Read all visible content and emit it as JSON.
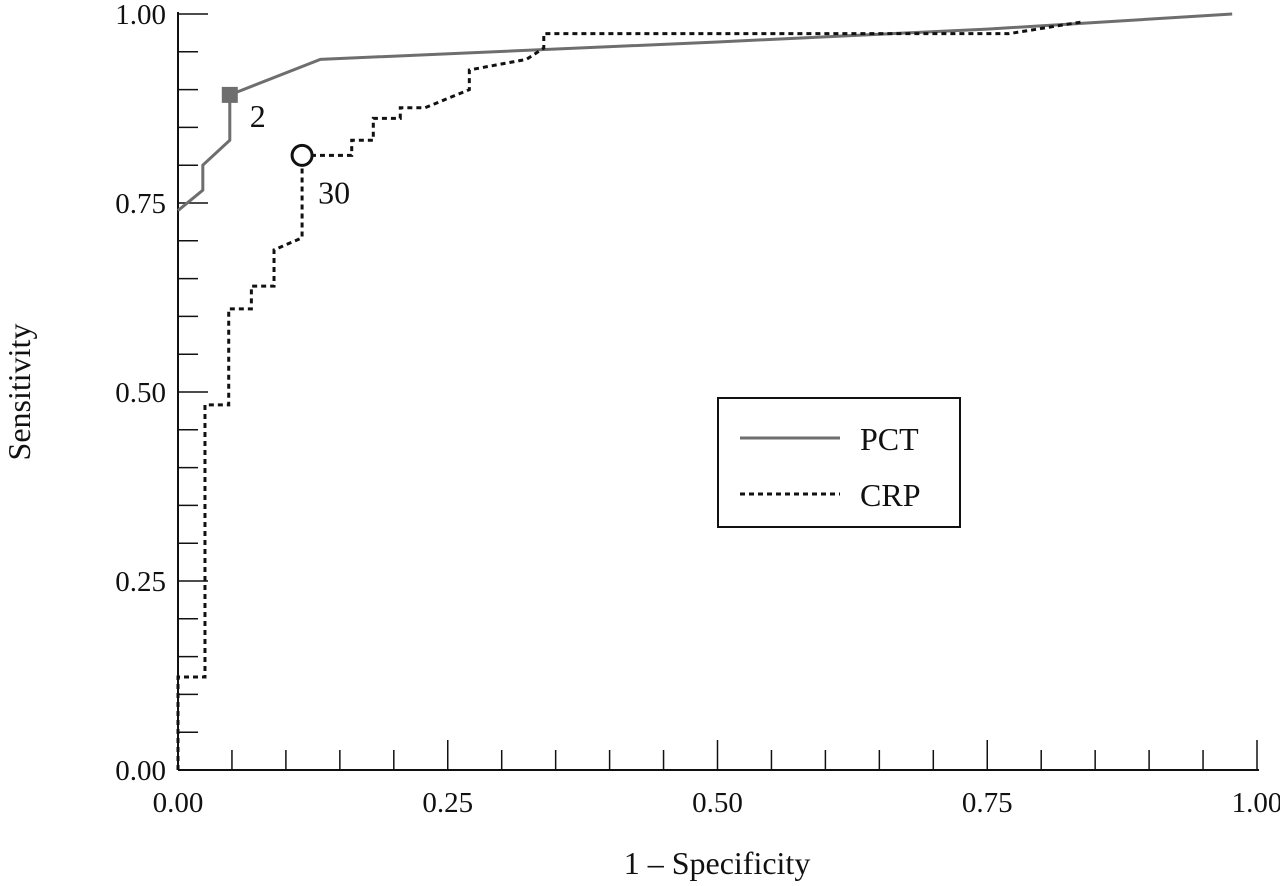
{
  "chart_data": {
    "type": "line",
    "title": "",
    "xlabel": "1 – Specificity",
    "ylabel": "Sensitivity",
    "xlim": [
      0,
      1
    ],
    "ylim": [
      0,
      1
    ],
    "xticks": [
      "0.00",
      "0.25",
      "0.50",
      "0.75",
      "1.00"
    ],
    "yticks": [
      "0.00",
      "0.25",
      "0.50",
      "0.75",
      "1.00"
    ],
    "xtick_values": [
      0,
      0.25,
      0.5,
      0.75,
      1
    ],
    "ytick_values": [
      0,
      0.25,
      0.5,
      0.75,
      1
    ],
    "minor_tick_step": 0.05,
    "grid": false,
    "legend_position": "center-right",
    "series": [
      {
        "name": "PCT",
        "style": "solid",
        "color": "#6e6e6e",
        "x": [
          0,
          0.023,
          0.023,
          0.048,
          0.048,
          0.132,
          0.5,
          0.75,
          0.977
        ],
        "y": [
          0.74,
          0.767,
          0.8,
          0.833,
          0.893,
          0.94,
          0.963,
          0.98,
          1.0
        ],
        "marker": {
          "x": 0.048,
          "y": 0.893,
          "shape": "filled-square",
          "label": "2"
        }
      },
      {
        "name": "CRP",
        "style": "dotted",
        "color": "#111111",
        "x": [
          0,
          0,
          0.025,
          0.025,
          0.047,
          0.047,
          0.068,
          0.068,
          0.089,
          0.089,
          0.115,
          0.115,
          0.161,
          0.161,
          0.181,
          0.181,
          0.206,
          0.206,
          0.229,
          0.27,
          0.27,
          0.323,
          0.339,
          0.339,
          0.77,
          0.84
        ],
        "y": [
          0,
          0.123,
          0.123,
          0.483,
          0.483,
          0.61,
          0.61,
          0.64,
          0.64,
          0.688,
          0.704,
          0.813,
          0.813,
          0.833,
          0.833,
          0.862,
          0.862,
          0.876,
          0.876,
          0.9,
          0.926,
          0.94,
          0.955,
          0.974,
          0.974,
          0.99
        ],
        "marker": {
          "x": 0.115,
          "y": 0.813,
          "shape": "open-circle",
          "label": "30"
        }
      }
    ]
  }
}
